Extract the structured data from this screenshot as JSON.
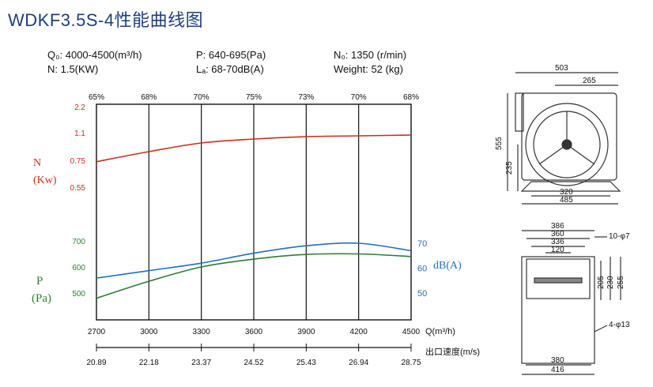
{
  "title": "WDKF3.5S-4性能曲线图",
  "specs": {
    "q": "Q₀: 4000-4500(m³/h)",
    "n": "N: 1.5(KW)",
    "p": "P: 640-695(Pa)",
    "la": "Lₐ: 68-70dB(A)",
    "n0": "N₀: 1350 (r/min)",
    "weight": "Weight: 52 (kg)"
  },
  "colors": {
    "power": "#d42a1e",
    "pressure": "#2e7d32",
    "noise": "#1f6fc8",
    "grid": "#111111",
    "drawing": "#333333"
  },
  "chart_data": {
    "type": "line",
    "x_label": "Q(m³/h)",
    "x_ticks": [
      "2700",
      "3000",
      "3300",
      "3600",
      "3900",
      "4200",
      "4500"
    ],
    "x_range": [
      2700,
      4500
    ],
    "velocity_label": "出口速度(m/s)",
    "velocity_ticks": [
      "20.89",
      "22.18",
      "23.37",
      "24.52",
      "25.43",
      "26.94",
      "28.75"
    ],
    "efficiency_ticks": [
      "65%",
      "68%",
      "70%",
      "75%",
      "73%",
      "70%",
      "68%"
    ],
    "power_axis": {
      "label_top": "N",
      "label_bottom": "(Kw)",
      "ticks": [
        "2.2",
        "1.1",
        "0.75",
        "0.55"
      ]
    },
    "pressure_axis": {
      "label_top": "P",
      "label_bottom": "(Pa)",
      "ticks": [
        "700",
        "600",
        "500"
      ]
    },
    "noise_axis": {
      "label": "dB(A)",
      "ticks": [
        "70",
        "60",
        "50"
      ]
    },
    "series": [
      {
        "name": "N",
        "color_key": "power",
        "points": [
          [
            2700,
            0.74
          ],
          [
            3000,
            0.86
          ],
          [
            3300,
            0.97
          ],
          [
            3600,
            1.02
          ],
          [
            3900,
            1.05
          ],
          [
            4200,
            1.06
          ],
          [
            4500,
            1.07
          ]
        ]
      },
      {
        "name": "P",
        "color_key": "pressure",
        "points": [
          [
            2700,
            480
          ],
          [
            3000,
            545
          ],
          [
            3300,
            600
          ],
          [
            3600,
            630
          ],
          [
            3900,
            648
          ],
          [
            4200,
            650
          ],
          [
            4500,
            640
          ]
        ]
      },
      {
        "name": "dB(A)",
        "color_key": "noise",
        "points": [
          [
            2700,
            56
          ],
          [
            3000,
            59
          ],
          [
            3300,
            62
          ],
          [
            3600,
            66
          ],
          [
            3900,
            69
          ],
          [
            4200,
            70
          ],
          [
            4500,
            67
          ]
        ]
      }
    ]
  },
  "drawing": {
    "top_view": {
      "dims": [
        "503",
        "265",
        "555",
        "235",
        "320",
        "485"
      ]
    },
    "side_view": {
      "dims": [
        "386",
        "360",
        "336",
        "120",
        "205",
        "230",
        "255",
        "380",
        "416"
      ],
      "notes": [
        "10-φ7",
        "4-φ13"
      ]
    }
  }
}
